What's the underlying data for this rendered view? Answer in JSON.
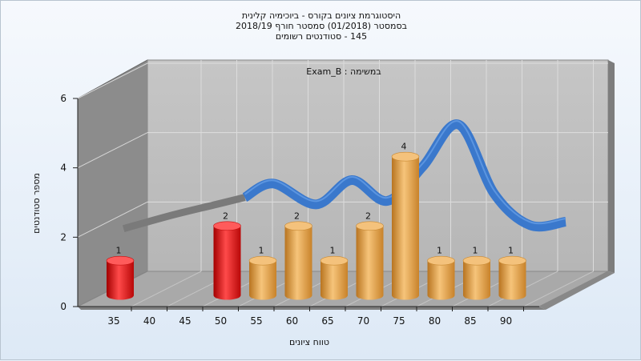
{
  "chart_data": {
    "type": "bar",
    "title_lines": [
      "היסטוגרמת ציונים בקורס - ביוכימיה קלינית",
      "בסמסטר  (01/2018)  סמסטר חורף 2018/19",
      "145 - סטודנטים רשומים"
    ],
    "subtitle": "Exam_B : במשימה",
    "xlabel": "טווח ציונים",
    "ylabel": "מספר סטודנטים",
    "x_ticks": [
      "35",
      "40",
      "45",
      "50",
      "55",
      "60",
      "65",
      "70",
      "75",
      "80",
      "85",
      "90"
    ],
    "y_ticks": [
      0,
      2,
      4,
      6
    ],
    "ylim": [
      0,
      6
    ],
    "bars": [
      {
        "x": 35,
        "value": 1,
        "label": "1",
        "color": "red"
      },
      {
        "x": 50,
        "value": 2,
        "label": "2",
        "color": "red"
      },
      {
        "x": 55,
        "value": 1,
        "label": "1",
        "color": "orange"
      },
      {
        "x": 60,
        "value": 2,
        "label": "2",
        "color": "orange"
      },
      {
        "x": 65,
        "value": 1,
        "label": "1",
        "color": "orange"
      },
      {
        "x": 70,
        "value": 2,
        "label": "2",
        "color": "orange"
      },
      {
        "x": 75,
        "value": 4,
        "label": "4",
        "color": "orange"
      },
      {
        "x": 80,
        "value": 1,
        "label": "1",
        "color": "orange"
      },
      {
        "x": 85,
        "value": 1,
        "label": "1",
        "color": "orange"
      },
      {
        "x": 90,
        "value": 1,
        "label": "1",
        "color": "orange"
      }
    ],
    "curve": {
      "x": [
        33,
        40,
        46,
        50,
        54,
        60,
        65,
        70,
        75,
        80,
        85,
        90,
        95
      ],
      "y": [
        1.6,
        2.0,
        2.3,
        2.5,
        2.9,
        2.3,
        3.0,
        2.4,
        3.4,
        4.6,
        2.6,
        1.7,
        1.8
      ],
      "gray_until_x": 50
    },
    "grid": true,
    "colors": {
      "red": "#e8141c",
      "orange": "#eaa548",
      "curve": "#3a78cc",
      "curve_gray": "#7a7a7a"
    }
  }
}
